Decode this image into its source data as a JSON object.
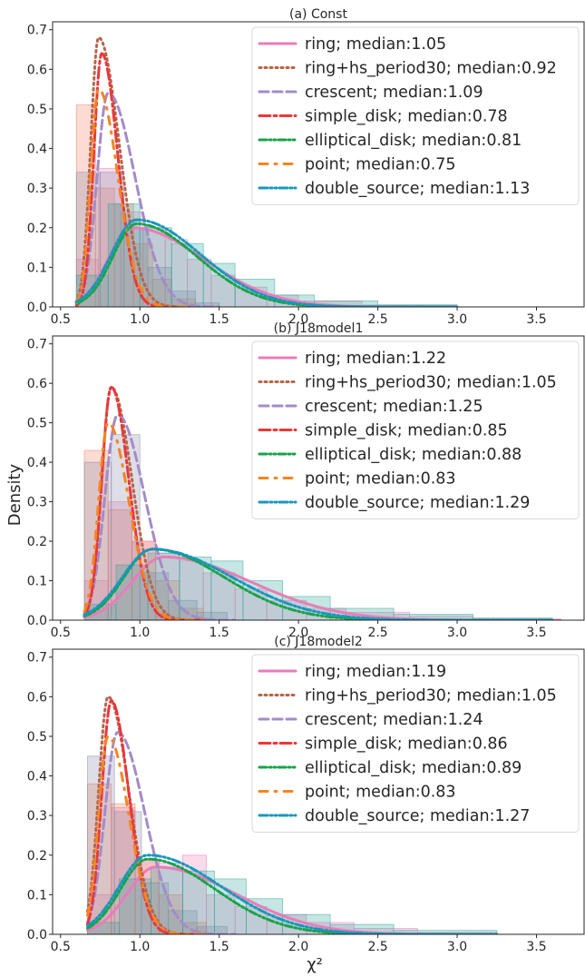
{
  "figure": {
    "ylabel": "Density",
    "xlabel": "χ²",
    "xticks": [
      0.5,
      1.0,
      1.5,
      2.0,
      2.5,
      3.0,
      3.5
    ],
    "yticks": [
      0.0,
      0.1,
      0.2,
      0.3,
      0.4,
      0.5,
      0.6,
      0.7
    ]
  },
  "series_styles": [
    {
      "key": "ring",
      "color": "#e87db9",
      "dash": "none",
      "width": 3
    },
    {
      "key": "hs",
      "color": "#b5654a",
      "dash": "2 4",
      "width": 3
    },
    {
      "key": "crescent",
      "color": "#a48bc8",
      "dash": "10 5",
      "width": 3
    },
    {
      "key": "simple_disk",
      "color": "#e8383b",
      "dash": "12 4 3 4",
      "width": 3
    },
    {
      "key": "elliptical_disk",
      "color": "#17a34a",
      "dash": "8 3 2 3 2 3",
      "width": 3
    },
    {
      "key": "point",
      "color": "#f58520",
      "dash": "9 8 2 8",
      "width": 3
    },
    {
      "key": "double_source",
      "color": "#1897bd",
      "dash": "9 3 2 3 2 3",
      "width": 3
    }
  ],
  "chart_data": [
    {
      "type": "area",
      "title": "(a) Const",
      "xlim": [
        0.45,
        3.8
      ],
      "ylim": [
        0,
        0.72
      ],
      "legend_placement": "upper-right",
      "series": [
        {
          "name": "ring; median:1.05",
          "mode": 0.95,
          "peak": 0.2,
          "sl": 0.15,
          "sr": 0.45,
          "xmin": 0.6,
          "xmax": 3.0
        },
        {
          "name": "ring+hs_period30; median:0.92",
          "mode": 0.74,
          "peak": 0.68,
          "sl": 0.05,
          "sr": 0.13,
          "xmin": 0.6,
          "xmax": 1.35
        },
        {
          "name": "crescent; median:1.09",
          "mode": 0.8,
          "peak": 0.54,
          "sl": 0.07,
          "sr": 0.17,
          "xmin": 0.6,
          "xmax": 1.5
        },
        {
          "name": "simple_disk; median:0.78",
          "mode": 0.76,
          "peak": 0.64,
          "sl": 0.05,
          "sr": 0.1,
          "xmin": 0.6,
          "xmax": 1.25
        },
        {
          "name": "elliptical_disk; median:0.81",
          "mode": 0.98,
          "peak": 0.21,
          "sl": 0.15,
          "sr": 0.38,
          "xmin": 0.6,
          "xmax": 3.0
        },
        {
          "name": "point; median:0.75",
          "mode": 0.74,
          "peak": 0.55,
          "sl": 0.05,
          "sr": 0.12,
          "xmin": 0.6,
          "xmax": 1.3
        },
        {
          "name": "double_source; median:1.13",
          "mode": 0.98,
          "peak": 0.22,
          "sl": 0.16,
          "sr": 0.4,
          "xmin": 0.6,
          "xmax": 3.0
        }
      ],
      "histograms": [
        {
          "color": "#e87db9",
          "edges": [
            0.6,
            0.74,
            0.88,
            1.02,
            1.16,
            1.3,
            1.45,
            1.6,
            1.8,
            2.0,
            2.4,
            3.0
          ],
          "heights": [
            0.12,
            0.35,
            0.24,
            0.2,
            0.17,
            0.12,
            0.08,
            0.05,
            0.03,
            0.015,
            0.005
          ]
        },
        {
          "color": "#f07f62",
          "edges": [
            0.6,
            0.72,
            0.84,
            0.96,
            1.08,
            1.2,
            1.35
          ],
          "heights": [
            0.51,
            0.3,
            0.26,
            0.16,
            0.07,
            0.02
          ]
        },
        {
          "color": "#8a8aa6",
          "edges": [
            0.6,
            0.75,
            0.9,
            1.05,
            1.2,
            1.35,
            1.5
          ],
          "heights": [
            0.34,
            0.34,
            0.2,
            0.1,
            0.04,
            0.01
          ]
        },
        {
          "color": "#2fa59a",
          "edges": [
            0.6,
            0.8,
            1.0,
            1.2,
            1.4,
            1.6,
            1.85,
            2.1,
            2.5,
            3.0
          ],
          "heights": [
            0.08,
            0.26,
            0.2,
            0.16,
            0.11,
            0.07,
            0.03,
            0.015,
            0.005
          ]
        }
      ]
    },
    {
      "type": "area",
      "title": "(b) J18model1",
      "xlim": [
        0.45,
        3.8
      ],
      "ylim": [
        0,
        0.72
      ],
      "legend_placement": "upper-right",
      "series": [
        {
          "name": "ring; median:1.22",
          "mode": 1.15,
          "peak": 0.16,
          "sl": 0.2,
          "sr": 0.55,
          "xmin": 0.65,
          "xmax": 3.65
        },
        {
          "name": "ring+hs_period30; median:1.05",
          "mode": 0.82,
          "peak": 0.59,
          "sl": 0.06,
          "sr": 0.13,
          "xmin": 0.65,
          "xmax": 1.45
        },
        {
          "name": "crescent; median:1.25",
          "mode": 0.86,
          "peak": 0.52,
          "sl": 0.08,
          "sr": 0.17,
          "xmin": 0.65,
          "xmax": 1.6
        },
        {
          "name": "simple_disk; median:0.85",
          "mode": 0.82,
          "peak": 0.59,
          "sl": 0.06,
          "sr": 0.11,
          "xmin": 0.65,
          "xmax": 1.4
        },
        {
          "name": "elliptical_disk; median:0.88",
          "mode": 1.08,
          "peak": 0.18,
          "sl": 0.18,
          "sr": 0.45,
          "xmin": 0.65,
          "xmax": 3.6
        },
        {
          "name": "point; median:0.83",
          "mode": 0.8,
          "peak": 0.5,
          "sl": 0.06,
          "sr": 0.13,
          "xmin": 0.65,
          "xmax": 1.4
        },
        {
          "name": "double_source; median:1.29",
          "mode": 1.08,
          "peak": 0.18,
          "sl": 0.19,
          "sr": 0.5,
          "xmin": 0.65,
          "xmax": 3.6
        }
      ],
      "histograms": [
        {
          "color": "#e87db9",
          "edges": [
            0.65,
            0.8,
            0.95,
            1.1,
            1.25,
            1.4,
            1.6,
            1.8,
            2.05,
            2.3,
            2.7,
            3.1,
            3.6
          ],
          "heights": [
            0.1,
            0.3,
            0.2,
            0.17,
            0.15,
            0.12,
            0.08,
            0.05,
            0.03,
            0.02,
            0.01,
            0.005
          ]
        },
        {
          "color": "#f07f62",
          "edges": [
            0.65,
            0.8,
            0.95,
            1.1,
            1.25,
            1.4
          ],
          "heights": [
            0.43,
            0.28,
            0.2,
            0.1,
            0.03
          ]
        },
        {
          "color": "#8a8aa6",
          "edges": [
            0.65,
            0.82,
            1.0,
            1.18,
            1.36,
            1.55
          ],
          "heights": [
            0.4,
            0.47,
            0.12,
            0.05,
            0.02
          ]
        },
        {
          "color": "#2fa59a",
          "edges": [
            0.65,
            0.85,
            1.05,
            1.25,
            1.45,
            1.65,
            1.9,
            2.2,
            2.6,
            3.1,
            3.6
          ],
          "heights": [
            0.04,
            0.14,
            0.17,
            0.16,
            0.15,
            0.1,
            0.06,
            0.03,
            0.015,
            0.005
          ]
        }
      ]
    },
    {
      "type": "area",
      "title": "(c) J18model2",
      "xlim": [
        0.45,
        3.8
      ],
      "ylim": [
        0,
        0.72
      ],
      "legend_placement": "upper-right",
      "series": [
        {
          "name": "ring; median:1.19",
          "mode": 1.1,
          "peak": 0.17,
          "sl": 0.18,
          "sr": 0.5,
          "xmin": 0.67,
          "xmax": 3.25
        },
        {
          "name": "ring+hs_period30; median:1.05",
          "mode": 0.8,
          "peak": 0.6,
          "sl": 0.06,
          "sr": 0.13,
          "xmin": 0.67,
          "xmax": 1.45
        },
        {
          "name": "crescent; median:1.24",
          "mode": 0.86,
          "peak": 0.51,
          "sl": 0.08,
          "sr": 0.17,
          "xmin": 0.67,
          "xmax": 1.6
        },
        {
          "name": "simple_disk; median:0.86",
          "mode": 0.82,
          "peak": 0.59,
          "sl": 0.06,
          "sr": 0.11,
          "xmin": 0.67,
          "xmax": 1.4
        },
        {
          "name": "elliptical_disk; median:0.89",
          "mode": 1.05,
          "peak": 0.19,
          "sl": 0.17,
          "sr": 0.42,
          "xmin": 0.67,
          "xmax": 3.2
        },
        {
          "name": "point; median:0.83",
          "mode": 0.8,
          "peak": 0.5,
          "sl": 0.06,
          "sr": 0.13,
          "xmin": 0.67,
          "xmax": 1.4
        },
        {
          "name": "double_source; median:1.27",
          "mode": 1.05,
          "peak": 0.2,
          "sl": 0.18,
          "sr": 0.46,
          "xmin": 0.67,
          "xmax": 3.25
        }
      ],
      "histograms": [
        {
          "color": "#e87db9",
          "edges": [
            0.67,
            0.82,
            0.97,
            1.12,
            1.27,
            1.42,
            1.6,
            1.8,
            2.05,
            2.35,
            2.75,
            3.25
          ],
          "heights": [
            0.1,
            0.32,
            0.19,
            0.18,
            0.2,
            0.1,
            0.07,
            0.05,
            0.03,
            0.015,
            0.005
          ]
        },
        {
          "color": "#f07f62",
          "edges": [
            0.67,
            0.82,
            0.97,
            1.12,
            1.27,
            1.42
          ],
          "heights": [
            0.38,
            0.33,
            0.19,
            0.1,
            0.03
          ]
        },
        {
          "color": "#8a8aa6",
          "edges": [
            0.67,
            0.84,
            1.01,
            1.18,
            1.36,
            1.55
          ],
          "heights": [
            0.45,
            0.31,
            0.13,
            0.06,
            0.02
          ]
        },
        {
          "color": "#2fa59a",
          "edges": [
            0.67,
            0.87,
            1.07,
            1.27,
            1.47,
            1.67,
            1.9,
            2.2,
            2.6,
            3.25
          ],
          "heights": [
            0.03,
            0.14,
            0.17,
            0.16,
            0.14,
            0.09,
            0.05,
            0.025,
            0.01
          ]
        }
      ]
    }
  ]
}
